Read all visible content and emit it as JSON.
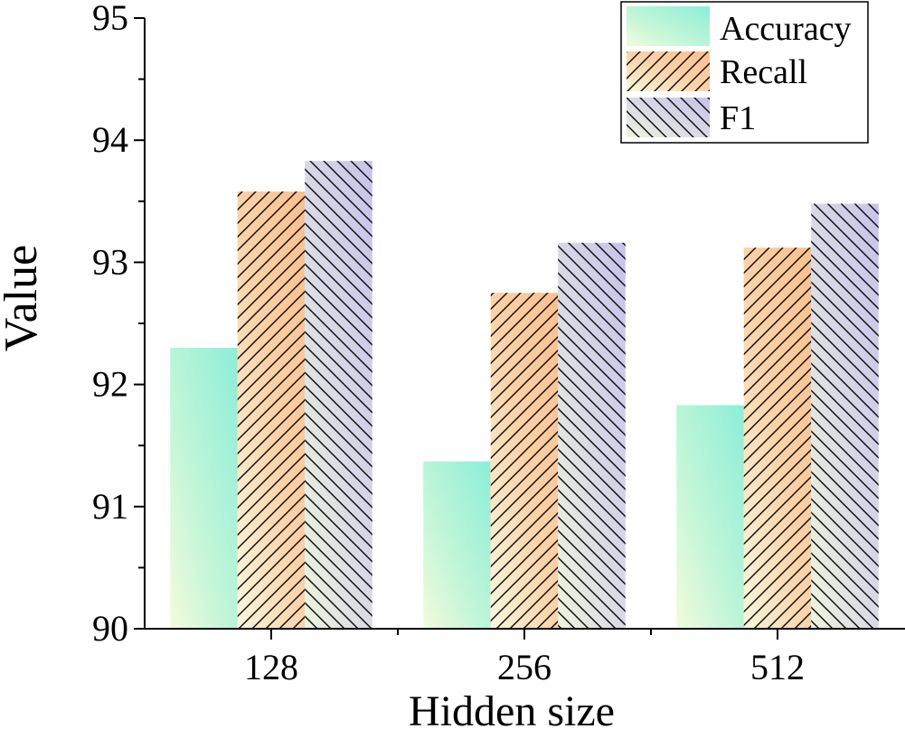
{
  "chart_data": {
    "type": "bar",
    "title": "",
    "xlabel": "Hidden size",
    "ylabel": "Value",
    "categories": [
      "128",
      "256",
      "512"
    ],
    "ylim": [
      90,
      95
    ],
    "yticks": [
      "90",
      "91",
      "92",
      "93",
      "94",
      "95"
    ],
    "grid": false,
    "legend_position": "top-right",
    "series": [
      {
        "name": "Accuracy",
        "values": [
          92.3,
          91.37,
          91.83
        ],
        "pattern": "none",
        "colors": [
          "#f3fbdc",
          "#8ceed8"
        ]
      },
      {
        "name": "Recall",
        "values": [
          93.58,
          92.75,
          93.12
        ],
        "pattern": "forward-diagonal",
        "colors": [
          "#f7f7dd",
          "#fbbf8d"
        ]
      },
      {
        "name": "F1",
        "values": [
          93.83,
          93.16,
          93.48
        ],
        "pattern": "back-diagonal",
        "colors": [
          "#eef4dd",
          "#c6c3ea"
        ]
      }
    ]
  }
}
